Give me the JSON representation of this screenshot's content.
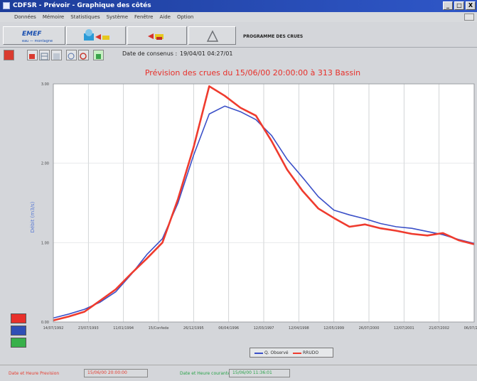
{
  "window": {
    "title": "CDFSR - Prévoir - Graphique des côtés",
    "buttons": [
      "_",
      "□",
      "X"
    ]
  },
  "menu": {
    "items": [
      "Données",
      "Mémoire",
      "Statistiques",
      "Système",
      "Fenêtre",
      "Aide",
      "Option"
    ]
  },
  "toolbar": {
    "logo": "EMEF",
    "logo_sub": "eau — montagne",
    "program_label": "PROGRAMME DES CRUES"
  },
  "info": {
    "date_label": "Date de consenus :",
    "date_value": "19/04/01 04:27/01"
  },
  "chart": {
    "title": "Prévision des crues du 15/06/00 20:00:00 à 313 Bassin",
    "y_label": "Débit (m3/s)"
  },
  "chart_data": {
    "type": "line",
    "title": "Prévision des crues du 15/06/00 20:00:00 à 313 Bassin",
    "ylabel": "Débit (m3/s)",
    "ylim": [
      0,
      3
    ],
    "yticks": [
      "0.00",
      "1.00",
      "2.00",
      "3.00"
    ],
    "xticks": [
      "14/07/1992",
      "23/07/1993",
      "11/01/1994",
      "15/Confede",
      "26/12/1995",
      "06/04/1996",
      "12/03/1997",
      "12/04/1998",
      "12/05/1999",
      "26/07/2000",
      "12/07/2001",
      "21/07/2002",
      "06/07/2003"
    ],
    "grid": true,
    "series": [
      {
        "name": "Q. Observé",
        "color": "#3b50c8",
        "values": [
          0.05,
          0.1,
          0.16,
          0.25,
          0.38,
          0.6,
          0.85,
          1.05,
          1.5,
          2.1,
          2.62,
          2.72,
          2.65,
          2.55,
          2.35,
          2.05,
          1.82,
          1.58,
          1.41,
          1.35,
          1.3,
          1.24,
          1.2,
          1.18,
          1.14,
          1.1,
          1.04,
          0.99
        ]
      },
      {
        "name": "RRUDO",
        "color": "#ef3b2e",
        "values": [
          0.02,
          0.07,
          0.13,
          0.27,
          0.41,
          0.61,
          0.8,
          1.0,
          1.55,
          2.2,
          2.97,
          2.85,
          2.7,
          2.6,
          2.28,
          1.92,
          1.65,
          1.43,
          1.31,
          1.2,
          1.23,
          1.18,
          1.15,
          1.11,
          1.09,
          1.12,
          1.03,
          0.98
        ]
      }
    ]
  },
  "legend": {
    "observed": "Q. Observé",
    "forecast": "RRUDO"
  },
  "status": {
    "left_label": "Date et Heure Prevision",
    "left_value": "15/06/00 20:00:00",
    "right_label": "Date et Heure courante",
    "right_value": "15/06/00 11:36:01"
  },
  "colors": {
    "title_red": "#e8302a",
    "swatch_red": "#e8302a",
    "swatch_blue": "#2f4fb5",
    "swatch_green": "#37b04a",
    "plot_bg": "#ffffff"
  }
}
